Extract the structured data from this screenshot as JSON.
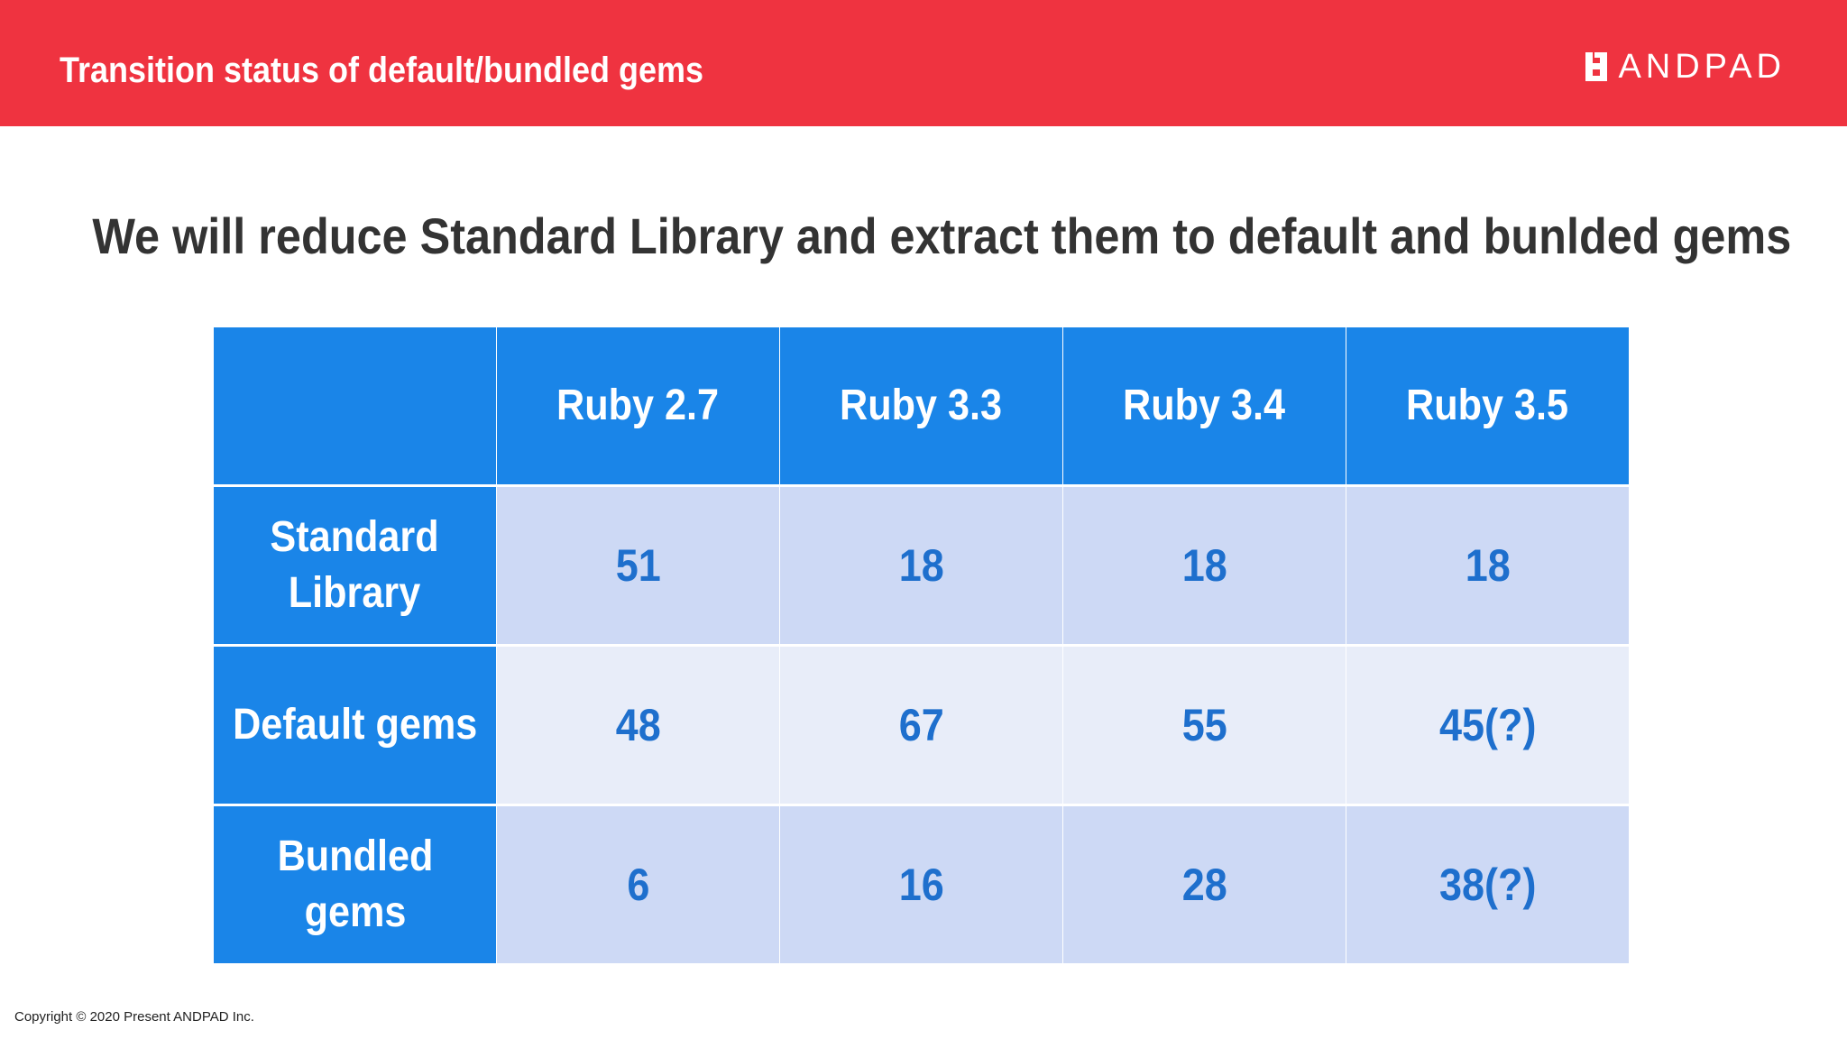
{
  "header": {
    "title": "Transition status of default/bundled gems",
    "logo_text": "ANDPAD"
  },
  "subtitle": "We will reduce Standard Library and extract them to default and bunlded gems",
  "table": {
    "columns": [
      "",
      "Ruby 2.7",
      "Ruby 3.3",
      "Ruby 3.4",
      "Ruby 3.5"
    ],
    "rows": [
      {
        "label": "Standard\nLibrary",
        "values": [
          "51",
          "18",
          "18",
          "18"
        ]
      },
      {
        "label": "Default gems",
        "values": [
          "48",
          "67",
          "55",
          "45(?)"
        ]
      },
      {
        "label": "Bundled\ngems",
        "values": [
          "6",
          "16",
          "28",
          "38(?)"
        ]
      }
    ]
  },
  "footer": {
    "copyright": "Copyright © 2020 Present ANDPAD Inc."
  },
  "colors": {
    "header_red": "#ef3340",
    "table_blue": "#1a85e8",
    "cell_shade_a": "#cdd9f5",
    "cell_shade_b": "#e8edf9",
    "value_text": "#1e6fcd"
  }
}
